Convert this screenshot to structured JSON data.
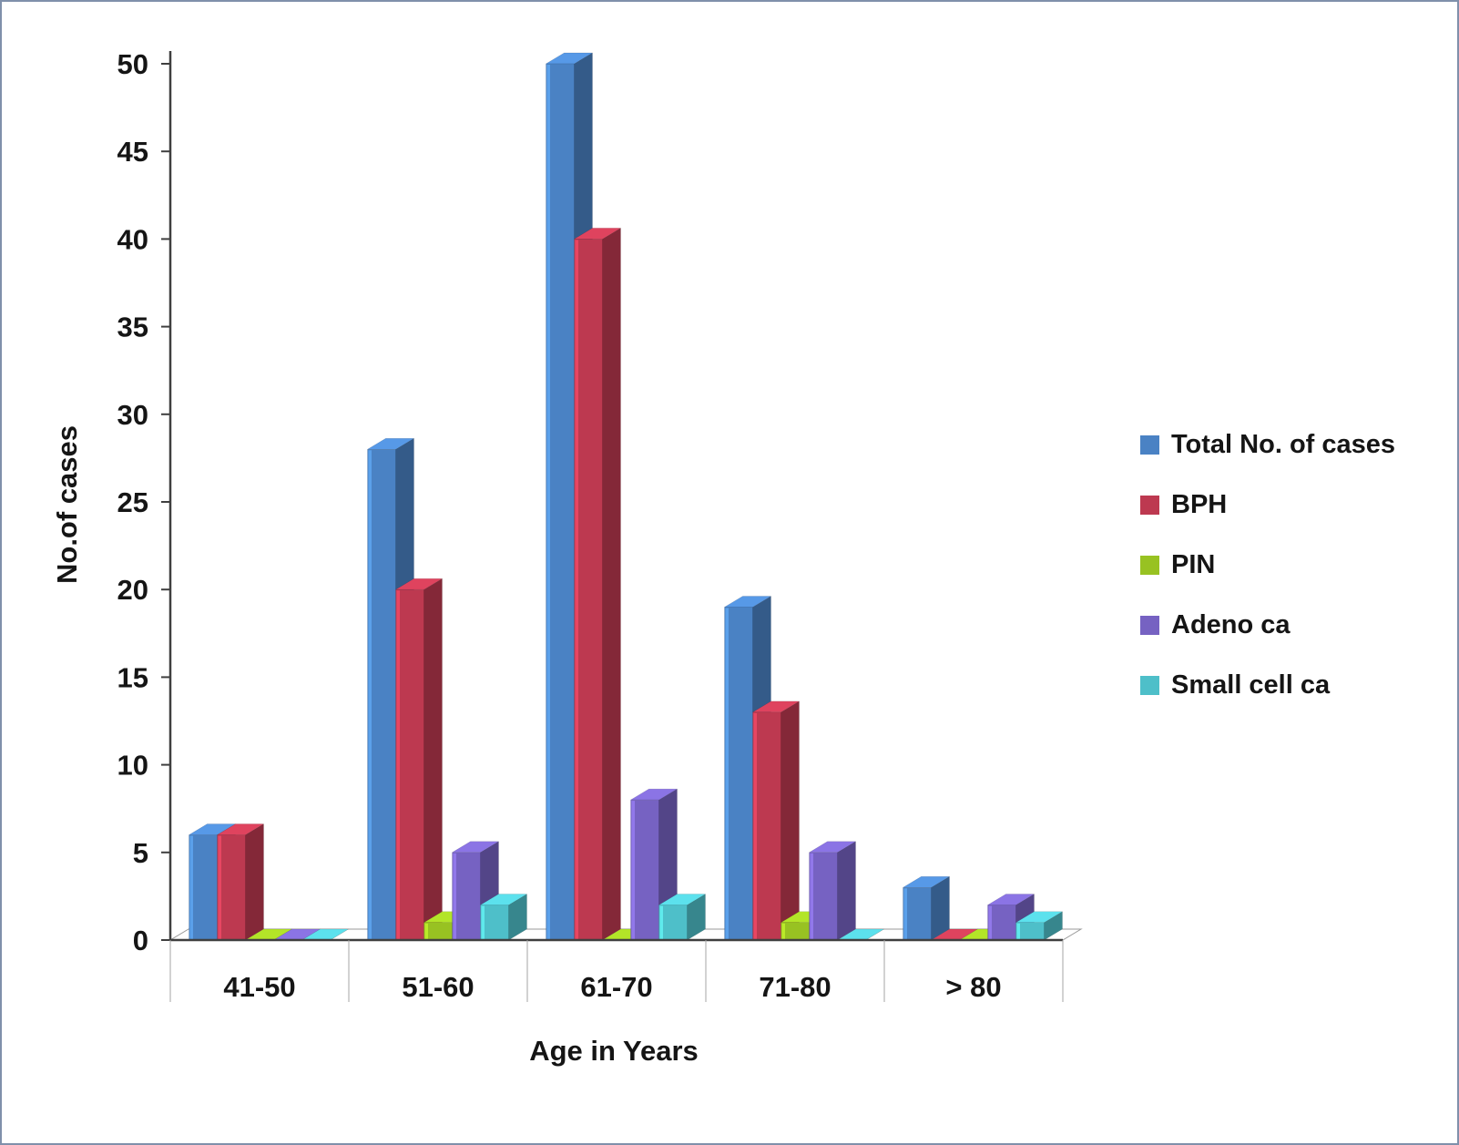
{
  "figure": {
    "border_color": "#7f90ab",
    "background": "#ffffff"
  },
  "chart_data": {
    "type": "bar",
    "style": "3d-clustered",
    "title": "",
    "xlabel": "Age in Years",
    "ylabel": "No.of cases",
    "categories": [
      "41-50",
      "51-60",
      "61-70",
      "71-80",
      "> 80"
    ],
    "series": [
      {
        "name": "Total No. of cases",
        "color": "#4a82c4",
        "values": [
          6,
          28,
          50,
          19,
          3
        ]
      },
      {
        "name": "BPH",
        "color": "#bd3950",
        "values": [
          6,
          20,
          40,
          13,
          0
        ]
      },
      {
        "name": "PIN",
        "color": "#98c222",
        "values": [
          0,
          1,
          0,
          1,
          0
        ]
      },
      {
        "name": "Adeno ca",
        "color": "#7662c2",
        "values": [
          0,
          5,
          8,
          5,
          2
        ]
      },
      {
        "name": "Small cell ca",
        "color": "#4ebfc9",
        "values": [
          0,
          2,
          2,
          0,
          1
        ]
      }
    ],
    "ylim": [
      0,
      50
    ],
    "ytick_step": 5,
    "grid": false,
    "legend_position": "right"
  }
}
